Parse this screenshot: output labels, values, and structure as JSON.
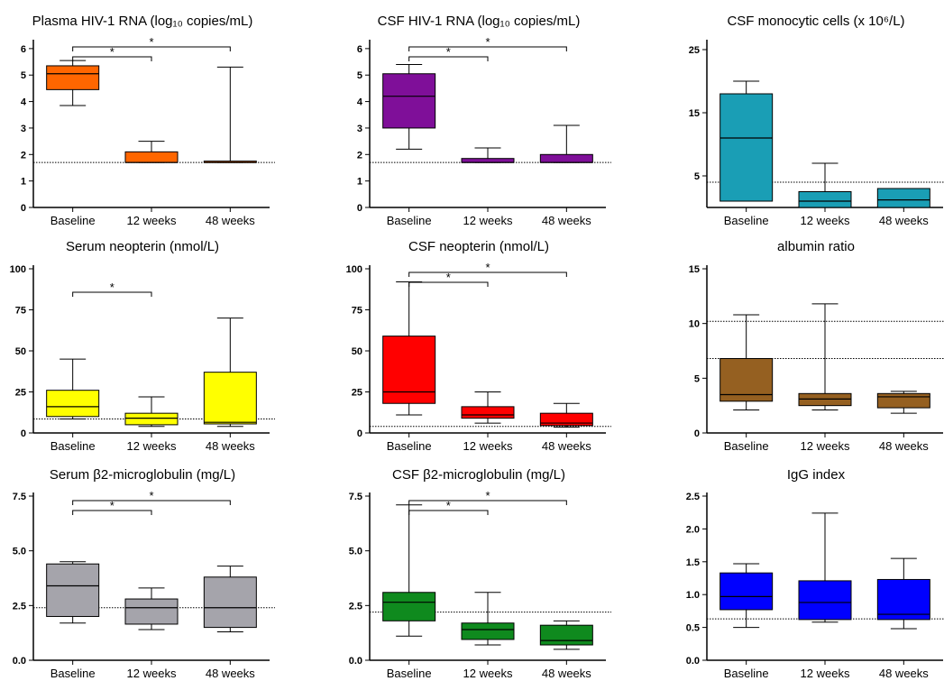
{
  "x_categories": [
    "Baseline",
    "12 weeks",
    "48 weeks"
  ],
  "chart_data": [
    {
      "type": "box",
      "title": "Plasma HIV-1 RNA (log₁₀ copies/mL)",
      "color": "#ff6600",
      "ylim": [
        0,
        6.2
      ],
      "yticks": [
        0,
        1,
        2,
        3,
        4,
        5,
        6
      ],
      "ytick_labels": [
        "0",
        "1",
        "2",
        "3",
        "4",
        "5",
        "6"
      ],
      "reference_lines": [
        1.7
      ],
      "boxes": [
        {
          "category": "Baseline",
          "min": 3.85,
          "q1": 4.45,
          "median": 5.05,
          "q3": 5.35,
          "max": 5.55
        },
        {
          "category": "12 weeks",
          "min": 1.7,
          "q1": 1.7,
          "median": 1.7,
          "q3": 2.1,
          "max": 2.5
        },
        {
          "category": "48 weeks",
          "min": 1.7,
          "q1": 1.7,
          "median": 1.7,
          "q3": 1.75,
          "max": 5.3
        }
      ],
      "significance": [
        {
          "from": "Baseline",
          "to": "12 weeks",
          "label": "*"
        },
        {
          "from": "Baseline",
          "to": "48 weeks",
          "label": "*"
        }
      ]
    },
    {
      "type": "box",
      "title": "CSF HIV-1 RNA (log₁₀ copies/mL)",
      "color": "#7f0f99",
      "ylim": [
        0,
        6.2
      ],
      "yticks": [
        0,
        1,
        2,
        3,
        4,
        5,
        6
      ],
      "ytick_labels": [
        "0",
        "1",
        "2",
        "3",
        "4",
        "5",
        "6"
      ],
      "reference_lines": [
        1.7
      ],
      "boxes": [
        {
          "category": "Baseline",
          "min": 2.2,
          "q1": 3.0,
          "median": 4.2,
          "q3": 5.05,
          "max": 5.4
        },
        {
          "category": "12 weeks",
          "min": 1.7,
          "q1": 1.7,
          "median": 1.7,
          "q3": 1.85,
          "max": 2.25
        },
        {
          "category": "48 weeks",
          "min": 1.7,
          "q1": 1.7,
          "median": 1.7,
          "q3": 2.0,
          "max": 3.1
        }
      ],
      "significance": [
        {
          "from": "Baseline",
          "to": "12 weeks",
          "label": "*"
        },
        {
          "from": "Baseline",
          "to": "48 weeks",
          "label": "*"
        }
      ]
    },
    {
      "type": "box",
      "title": "CSF monocytic cells (x 10⁶/L)",
      "color": "#1a9eb5",
      "ylim": [
        0,
        26
      ],
      "yticks": [
        5,
        15,
        25
      ],
      "ytick_labels": [
        "5",
        "15",
        "25"
      ],
      "reference_lines": [
        4
      ],
      "boxes": [
        {
          "category": "Baseline",
          "min": 1,
          "q1": 1,
          "median": 11,
          "q3": 18,
          "max": 20
        },
        {
          "category": "12 weeks",
          "min": 0,
          "q1": 0,
          "median": 1,
          "q3": 2.5,
          "max": 7
        },
        {
          "category": "48 weeks",
          "min": 0,
          "q1": 0,
          "median": 1.2,
          "q3": 3,
          "max": 3
        }
      ],
      "significance": []
    },
    {
      "type": "box",
      "title": "Serum neopterin (nmol/L)",
      "color": "#ffff00",
      "ylim": [
        0,
        100
      ],
      "yticks": [
        0,
        25,
        50,
        75,
        100
      ],
      "ytick_labels": [
        "0",
        "25",
        "50",
        "75",
        "100"
      ],
      "reference_lines": [
        8.5
      ],
      "boxes": [
        {
          "category": "Baseline",
          "min": 8.5,
          "q1": 10,
          "median": 16,
          "q3": 26,
          "max": 45
        },
        {
          "category": "12 weeks",
          "min": 4,
          "q1": 5,
          "median": 9,
          "q3": 12,
          "max": 22
        },
        {
          "category": "48 weeks",
          "min": 4,
          "q1": 5.5,
          "median": 6.5,
          "q3": 37,
          "max": 70
        }
      ],
      "significance": [
        {
          "from": "Baseline",
          "to": "12 weeks",
          "label": "*"
        }
      ]
    },
    {
      "type": "box",
      "title": "CSF neopterin (nmol/L)",
      "color": "#ff0000",
      "ylim": [
        0,
        100
      ],
      "yticks": [
        0,
        25,
        50,
        75,
        100
      ],
      "ytick_labels": [
        "0",
        "25",
        "50",
        "75",
        "100"
      ],
      "reference_lines": [
        4
      ],
      "boxes": [
        {
          "category": "Baseline",
          "min": 11,
          "q1": 18,
          "median": 25,
          "q3": 59,
          "max": 92
        },
        {
          "category": "12 weeks",
          "min": 6,
          "q1": 9,
          "median": 11,
          "q3": 16,
          "max": 25
        },
        {
          "category": "48 weeks",
          "min": 3.5,
          "q1": 4.5,
          "median": 6,
          "q3": 12,
          "max": 18
        }
      ],
      "significance": [
        {
          "from": "Baseline",
          "to": "12 weeks",
          "label": "*"
        },
        {
          "from": "Baseline",
          "to": "48 weeks",
          "label": "*"
        }
      ]
    },
    {
      "type": "box",
      "title": "albumin ratio",
      "color": "#956021",
      "ylim": [
        0,
        15
      ],
      "yticks": [
        0,
        5,
        10,
        15
      ],
      "ytick_labels": [
        "0",
        "5",
        "10",
        "15"
      ],
      "reference_lines": [
        10.2,
        6.8
      ],
      "boxes": [
        {
          "category": "Baseline",
          "min": 2.1,
          "q1": 2.9,
          "median": 3.5,
          "q3": 6.8,
          "max": 10.8
        },
        {
          "category": "12 weeks",
          "min": 2.1,
          "q1": 2.5,
          "median": 3.1,
          "q3": 3.6,
          "max": 11.8
        },
        {
          "category": "48 weeks",
          "min": 1.8,
          "q1": 2.3,
          "median": 3.3,
          "q3": 3.6,
          "max": 3.8
        }
      ],
      "significance": []
    },
    {
      "type": "box",
      "title": "Serum β2-microglobulin (mg/L)",
      "color": "#a5a4ab",
      "ylim": [
        0,
        7.5
      ],
      "yticks": [
        0,
        2.5,
        5,
        7.5
      ],
      "ytick_labels": [
        "0.0",
        "2.5",
        "5.0",
        "7.5"
      ],
      "reference_lines": [
        2.4
      ],
      "boxes": [
        {
          "category": "Baseline",
          "min": 1.7,
          "q1": 2.0,
          "median": 3.4,
          "q3": 4.4,
          "max": 4.5
        },
        {
          "category": "12 weeks",
          "min": 1.4,
          "q1": 1.65,
          "median": 2.4,
          "q3": 2.8,
          "max": 3.3
        },
        {
          "category": "48 weeks",
          "min": 1.3,
          "q1": 1.5,
          "median": 2.4,
          "q3": 3.8,
          "max": 4.3
        }
      ],
      "significance": [
        {
          "from": "Baseline",
          "to": "12 weeks",
          "label": "*"
        },
        {
          "from": "Baseline",
          "to": "48 weeks",
          "label": "*"
        }
      ]
    },
    {
      "type": "box",
      "title": "CSF β2-microglobulin (mg/L)",
      "color": "#0f8a1e",
      "ylim": [
        0,
        7.5
      ],
      "yticks": [
        0,
        2.5,
        5,
        7.5
      ],
      "ytick_labels": [
        "0.0",
        "2.5",
        "5.0",
        "7.5"
      ],
      "reference_lines": [
        2.2
      ],
      "boxes": [
        {
          "category": "Baseline",
          "min": 1.1,
          "q1": 1.8,
          "median": 2.65,
          "q3": 3.1,
          "max": 7.1
        },
        {
          "category": "12 weeks",
          "min": 0.7,
          "q1": 0.95,
          "median": 1.4,
          "q3": 1.7,
          "max": 3.1
        },
        {
          "category": "48 weeks",
          "min": 0.5,
          "q1": 0.7,
          "median": 0.9,
          "q3": 1.6,
          "max": 1.8
        }
      ],
      "significance": [
        {
          "from": "Baseline",
          "to": "12 weeks",
          "label": "*"
        },
        {
          "from": "Baseline",
          "to": "48 weeks",
          "label": "*"
        }
      ]
    },
    {
      "type": "box",
      "title": "IgG index",
      "color": "#0000ff",
      "ylim": [
        0,
        2.5
      ],
      "yticks": [
        0,
        0.5,
        1,
        1.5,
        2,
        2.5
      ],
      "ytick_labels": [
        "0.0",
        "0.5",
        "1.0",
        "1.5",
        "2.0",
        "2.5"
      ],
      "reference_lines": [
        0.63
      ],
      "boxes": [
        {
          "category": "Baseline",
          "min": 0.5,
          "q1": 0.77,
          "median": 0.97,
          "q3": 1.33,
          "max": 1.47
        },
        {
          "category": "12 weeks",
          "min": 0.58,
          "q1": 0.62,
          "median": 0.88,
          "q3": 1.21,
          "max": 2.24
        },
        {
          "category": "48 weeks",
          "min": 0.48,
          "q1": 0.62,
          "median": 0.7,
          "q3": 1.23,
          "max": 1.55
        }
      ],
      "significance": []
    }
  ]
}
